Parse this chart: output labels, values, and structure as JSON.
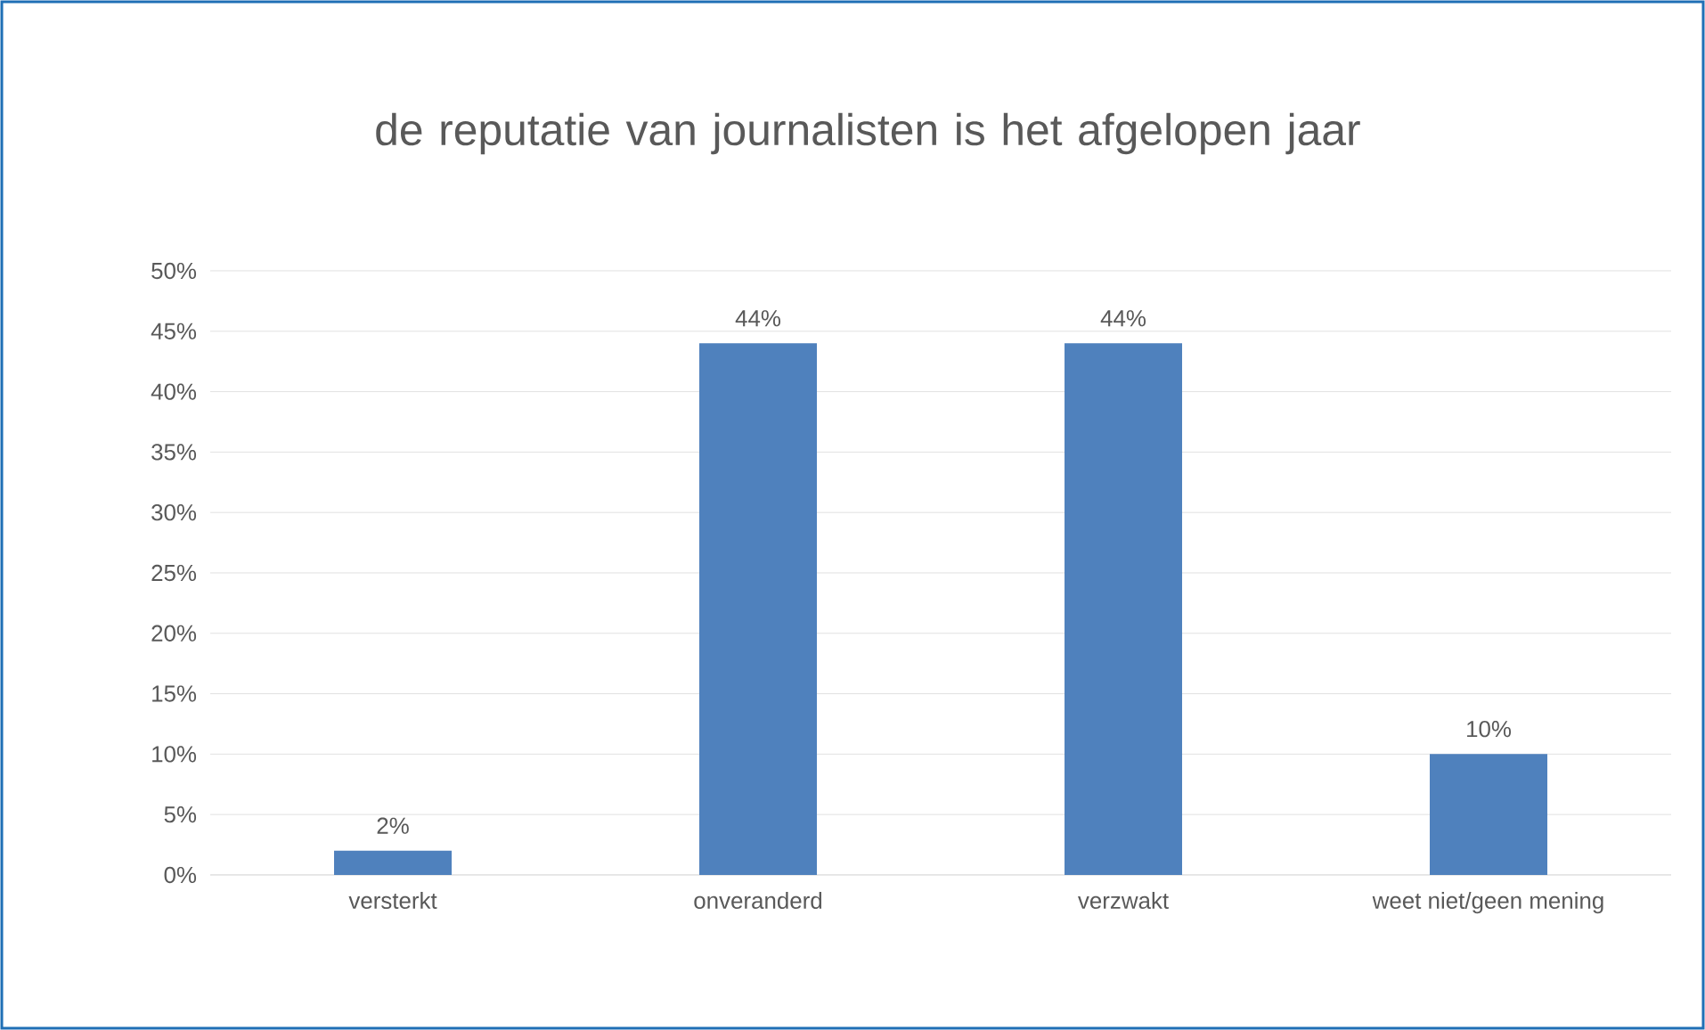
{
  "chart_data": {
    "type": "bar",
    "title": "de reputatie van journalisten is het afgelopen jaar",
    "categories": [
      "versterkt",
      "onveranderd",
      "verzwakt",
      "weet niet/geen mening"
    ],
    "values": [
      2,
      44,
      44,
      10
    ],
    "value_labels": [
      "2%",
      "44%",
      "44%",
      "10%"
    ],
    "color": "#4f81bd",
    "ylim": [
      0,
      50
    ],
    "yticks": [
      {
        "value": 0,
        "label": "0%"
      },
      {
        "value": 5,
        "label": "5%"
      },
      {
        "value": 10,
        "label": "10%"
      },
      {
        "value": 15,
        "label": "15%"
      },
      {
        "value": 20,
        "label": "20%"
      },
      {
        "value": 25,
        "label": "25%"
      },
      {
        "value": 30,
        "label": "30%"
      },
      {
        "value": 35,
        "label": "35%"
      },
      {
        "value": 40,
        "label": "40%"
      },
      {
        "value": 45,
        "label": "45%"
      },
      {
        "value": 50,
        "label": "50%"
      }
    ],
    "grid": "y"
  }
}
